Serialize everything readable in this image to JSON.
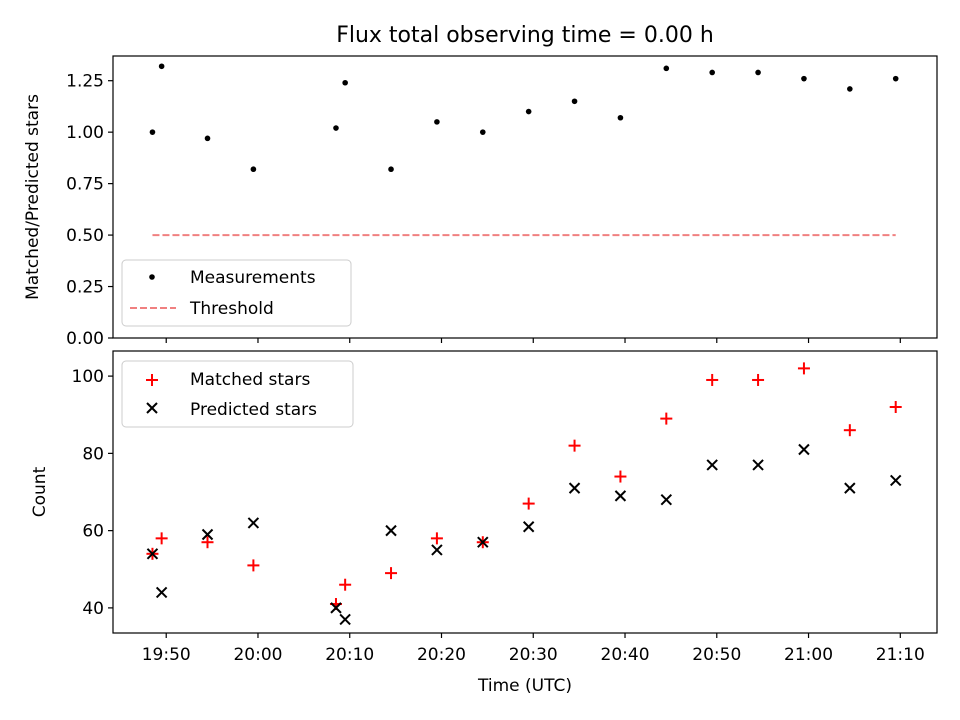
{
  "figure": {
    "title": "Flux total observing time = 0.00 h",
    "xlabel": "Time (UTC)"
  },
  "colors": {
    "measurement": "#000000",
    "threshold": "#f08080",
    "matched": "#ff0000",
    "predicted": "#000000"
  },
  "chart_data": [
    {
      "type": "scatter",
      "title": "Flux total observing time = 0.00 h",
      "xlabel": "",
      "ylabel": "Matched/Predicted stars",
      "ylim": [
        0,
        1.37
      ],
      "xlim_minutes": [
        1184.2,
        1274.0
      ],
      "xticks": [
        1190,
        1200,
        1210,
        1220,
        1230,
        1240,
        1250,
        1260,
        1270
      ],
      "yticks": [
        0,
        0.25,
        0.5,
        0.75,
        1.0,
        1.25
      ],
      "ytick_labels": [
        "0.00",
        "0.25",
        "0.50",
        "0.75",
        "1.00",
        "1.25"
      ],
      "legend": {
        "location": "lower-left",
        "entries": [
          "Measurements",
          "Threshold"
        ]
      },
      "series": [
        {
          "name": "Measurements",
          "marker": "dot",
          "x_minutes": [
            1188.5,
            1189.5,
            1194.5,
            1199.5,
            1208.5,
            1209.5,
            1214.5,
            1219.5,
            1224.5,
            1229.5,
            1234.5,
            1239.5,
            1244.5,
            1249.5,
            1254.5,
            1259.5,
            1264.5,
            1269.5
          ],
          "y": [
            1.0,
            1.32,
            0.97,
            0.82,
            1.02,
            1.24,
            0.82,
            1.05,
            1.0,
            1.1,
            1.15,
            1.07,
            1.31,
            1.29,
            1.29,
            1.26,
            1.21,
            1.26
          ]
        },
        {
          "name": "Threshold",
          "marker": "dashed-line",
          "x_minutes": [
            1188.5,
            1269.5
          ],
          "y": [
            0.5,
            0.5
          ]
        }
      ]
    },
    {
      "type": "scatter",
      "xlabel": "Time (UTC)",
      "ylabel": "Count",
      "ylim": [
        33.5,
        106.5
      ],
      "xlim_minutes": [
        1184.2,
        1274.0
      ],
      "xticks": [
        1190,
        1200,
        1210,
        1220,
        1230,
        1240,
        1250,
        1260,
        1270
      ],
      "xtick_labels": [
        "19:50",
        "20:00",
        "20:10",
        "20:20",
        "20:30",
        "20:40",
        "20:50",
        "21:00",
        "21:10"
      ],
      "yticks": [
        40,
        60,
        80,
        100
      ],
      "ytick_labels": [
        "40",
        "60",
        "80",
        "100"
      ],
      "legend": {
        "location": "upper-left",
        "entries": [
          "Matched stars",
          "Predicted stars"
        ]
      },
      "series": [
        {
          "name": "Matched stars",
          "marker": "plus",
          "x_minutes": [
            1188.5,
            1189.5,
            1194.5,
            1199.5,
            1208.5,
            1209.5,
            1214.5,
            1219.5,
            1224.5,
            1229.5,
            1234.5,
            1239.5,
            1244.5,
            1249.5,
            1254.5,
            1259.5,
            1264.5,
            1269.5
          ],
          "y": [
            54,
            58,
            57,
            51,
            41,
            46,
            49,
            58,
            57,
            67,
            82,
            74,
            89,
            99,
            99,
            102,
            86,
            92
          ]
        },
        {
          "name": "Predicted stars",
          "marker": "x",
          "x_minutes": [
            1188.5,
            1189.5,
            1194.5,
            1199.5,
            1208.5,
            1209.5,
            1214.5,
            1219.5,
            1224.5,
            1229.5,
            1234.5,
            1239.5,
            1244.5,
            1249.5,
            1254.5,
            1259.5,
            1264.5,
            1269.5
          ],
          "y": [
            54,
            44,
            59,
            62,
            40,
            37,
            60,
            55,
            57,
            61,
            71,
            69,
            68,
            77,
            77,
            81,
            71,
            73
          ]
        }
      ]
    }
  ]
}
